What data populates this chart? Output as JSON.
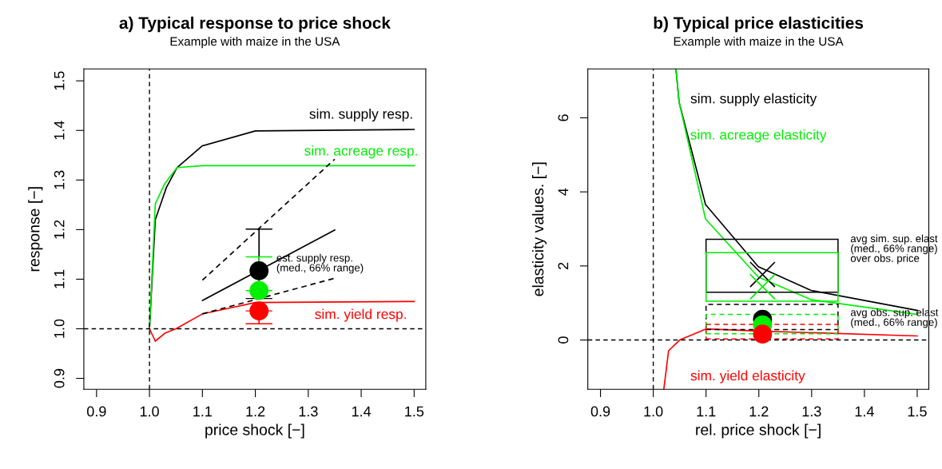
{
  "chart_data": [
    {
      "type": "line",
      "title": "a) Typical response to price shock",
      "subtitle": "Example with maize in the USA",
      "xlabel": "price shock [−]",
      "ylabel": "response [−]",
      "xlim": [
        0.876,
        1.522
      ],
      "ylim": [
        0.878,
        1.524
      ],
      "xticks": [
        0.9,
        {
          "value": 1.0,
          "label": "1.0"
        },
        1.1,
        1.2,
        1.3,
        1.4,
        1.5
      ],
      "yticks": [
        0.9,
        {
          "value": 1.0,
          "label": "1.0"
        },
        1.1,
        1.2,
        1.3,
        1.4,
        1.5
      ],
      "series": [
        {
          "name": "sim. supply resp.",
          "color": "#000000",
          "x": [
            1.0,
            1.011,
            1.032,
            1.052,
            1.1,
            1.2,
            1.5
          ],
          "values": [
            1.0,
            1.22,
            1.285,
            1.325,
            1.369,
            1.399,
            1.402
          ]
        },
        {
          "name": "sim. acreage resp.",
          "color": "#00ee00",
          "x": [
            1.0,
            1.011,
            1.029,
            1.052,
            1.1,
            1.5
          ],
          "values": [
            1.0,
            1.252,
            1.293,
            1.325,
            1.329,
            1.329
          ]
        },
        {
          "name": "sim. yield resp.",
          "color": "#ff0000",
          "x": [
            1.0,
            1.011,
            1.029,
            1.05,
            1.1,
            1.2,
            1.5
          ],
          "values": [
            1.0,
            0.975,
            0.991,
            1.0,
            1.03,
            1.053,
            1.055
          ]
        },
        {
          "color": "#000000",
          "x": [
            1.1,
            1.35
          ],
          "values": [
            1.057,
            1.199
          ]
        },
        {
          "color": "#000000",
          "line_style": "dashed",
          "x": [
            1.1,
            1.35
          ],
          "values": [
            1.098,
            1.342
          ]
        },
        {
          "color": "#000000",
          "line_style": "dashed",
          "x": [
            1.1,
            1.35
          ],
          "values": [
            1.03,
            1.102
          ]
        },
        {
          "type": "scatter",
          "marker": "circle",
          "color": "#000000",
          "x": [
            1.207
          ],
          "values": [
            1.117
          ],
          "errors": [
            [
              1.061,
              1.201
            ]
          ]
        },
        {
          "type": "scatter",
          "marker": "circle",
          "color": "#00ee00",
          "x": [
            1.207
          ],
          "values": [
            1.077
          ],
          "errors": [
            [
              1.077,
              1.145
            ]
          ]
        },
        {
          "type": "scatter",
          "marker": "circle",
          "color": "#ff0000",
          "x": [
            1.207
          ],
          "values": [
            1.036
          ],
          "errors": [
            [
              1.01,
              1.036
            ]
          ]
        }
      ],
      "ref_lines": [
        {
          "axis": "x",
          "value": 1.0,
          "line_style": "dashed",
          "color": "#000000"
        },
        {
          "axis": "y",
          "value": 1.0,
          "line_style": "dashed",
          "color": "#000000"
        }
      ],
      "annotations": [
        "est. supply resp.\n(med., 66% range)"
      ]
    },
    {
      "type": "line",
      "title": "b) Typical price elasticities",
      "subtitle": "Example with maize in the USA",
      "xlabel": "rel. price shock [−]",
      "ylabel": "elasticity values. [−]",
      "xlim": [
        0.876,
        1.522
      ],
      "ylim": [
        -1.33,
        7.32
      ],
      "xticks": [
        0.9,
        {
          "value": 1.0,
          "label": "1.0"
        },
        1.1,
        1.2,
        1.3,
        1.4,
        1.5
      ],
      "yticks": [
        0,
        2,
        4,
        6
      ],
      "series": [
        {
          "name": "sim. supply elasticity",
          "color": "#000000",
          "x": [
            1.043,
            1.049,
            1.099,
            1.199,
            1.299,
            1.5
          ],
          "values": [
            7.32,
            6.42,
            3.66,
            1.98,
            1.34,
            0.8
          ]
        },
        {
          "name": "sim. acreage elasticity",
          "color": "#00ee00",
          "x": [
            1.043,
            1.049,
            1.099,
            1.199,
            1.299,
            1.5
          ],
          "values": [
            7.32,
            6.42,
            3.27,
            1.7,
            1.09,
            0.69
          ]
        },
        {
          "name": "sim. yield elasticity",
          "color": "#ff0000",
          "x": [
            1.02,
            1.029,
            1.05,
            1.1,
            1.2,
            1.5
          ],
          "values": [
            -1.33,
            -0.29,
            0.0,
            0.3,
            0.24,
            0.11
          ]
        },
        {
          "type": "bar",
          "color": "#000000",
          "x": [
            1.225
          ],
          "base": [
            1.29
          ],
          "values": [
            1.43
          ]
        },
        {
          "type": "bar",
          "color": "#00ee00",
          "x": [
            1.225
          ],
          "base": [
            1.05
          ],
          "values": [
            1.31
          ]
        },
        {
          "type": "bar",
          "color": "#000000",
          "line_style": "dashed",
          "x": [
            1.225
          ],
          "base": [
            0.28
          ],
          "values": [
            0.68
          ]
        },
        {
          "type": "bar",
          "color": "#00ee00",
          "line_style": "dashed",
          "x": [
            1.225
          ],
          "base": [
            0.17
          ],
          "values": [
            0.52
          ]
        },
        {
          "type": "bar",
          "color": "#ff0000",
          "line_style": "dashed",
          "x": [
            1.225
          ],
          "base": [
            0.03
          ],
          "values": [
            0.39
          ]
        },
        {
          "type": "scatter",
          "marker": "cross",
          "color": "#000000",
          "x": [
            1.207
          ],
          "values": [
            1.77
          ]
        },
        {
          "type": "scatter",
          "marker": "cross",
          "color": "#00ee00",
          "x": [
            1.207
          ],
          "values": [
            1.44
          ]
        },
        {
          "type": "scatter",
          "marker": "circle",
          "color": "#000000",
          "x": [
            1.207
          ],
          "values": [
            0.56
          ]
        },
        {
          "type": "scatter",
          "marker": "circle",
          "color": "#00ee00",
          "x": [
            1.207
          ],
          "values": [
            0.41
          ]
        },
        {
          "type": "scatter",
          "marker": "circle",
          "color": "#ff0000",
          "x": [
            1.207
          ],
          "values": [
            0.16
          ]
        }
      ],
      "ref_lines": [
        {
          "axis": "x",
          "value": 1.0,
          "line_style": "dashed",
          "color": "#000000"
        },
        {
          "axis": "y",
          "value": 0,
          "line_style": "dashed",
          "color": "#000000"
        }
      ],
      "annotations": [
        "avg sim. sup. elast\n(med., 66% range)\nover obs. price",
        "avg obs. sup. elast\n(med., 66% range)"
      ]
    }
  ]
}
